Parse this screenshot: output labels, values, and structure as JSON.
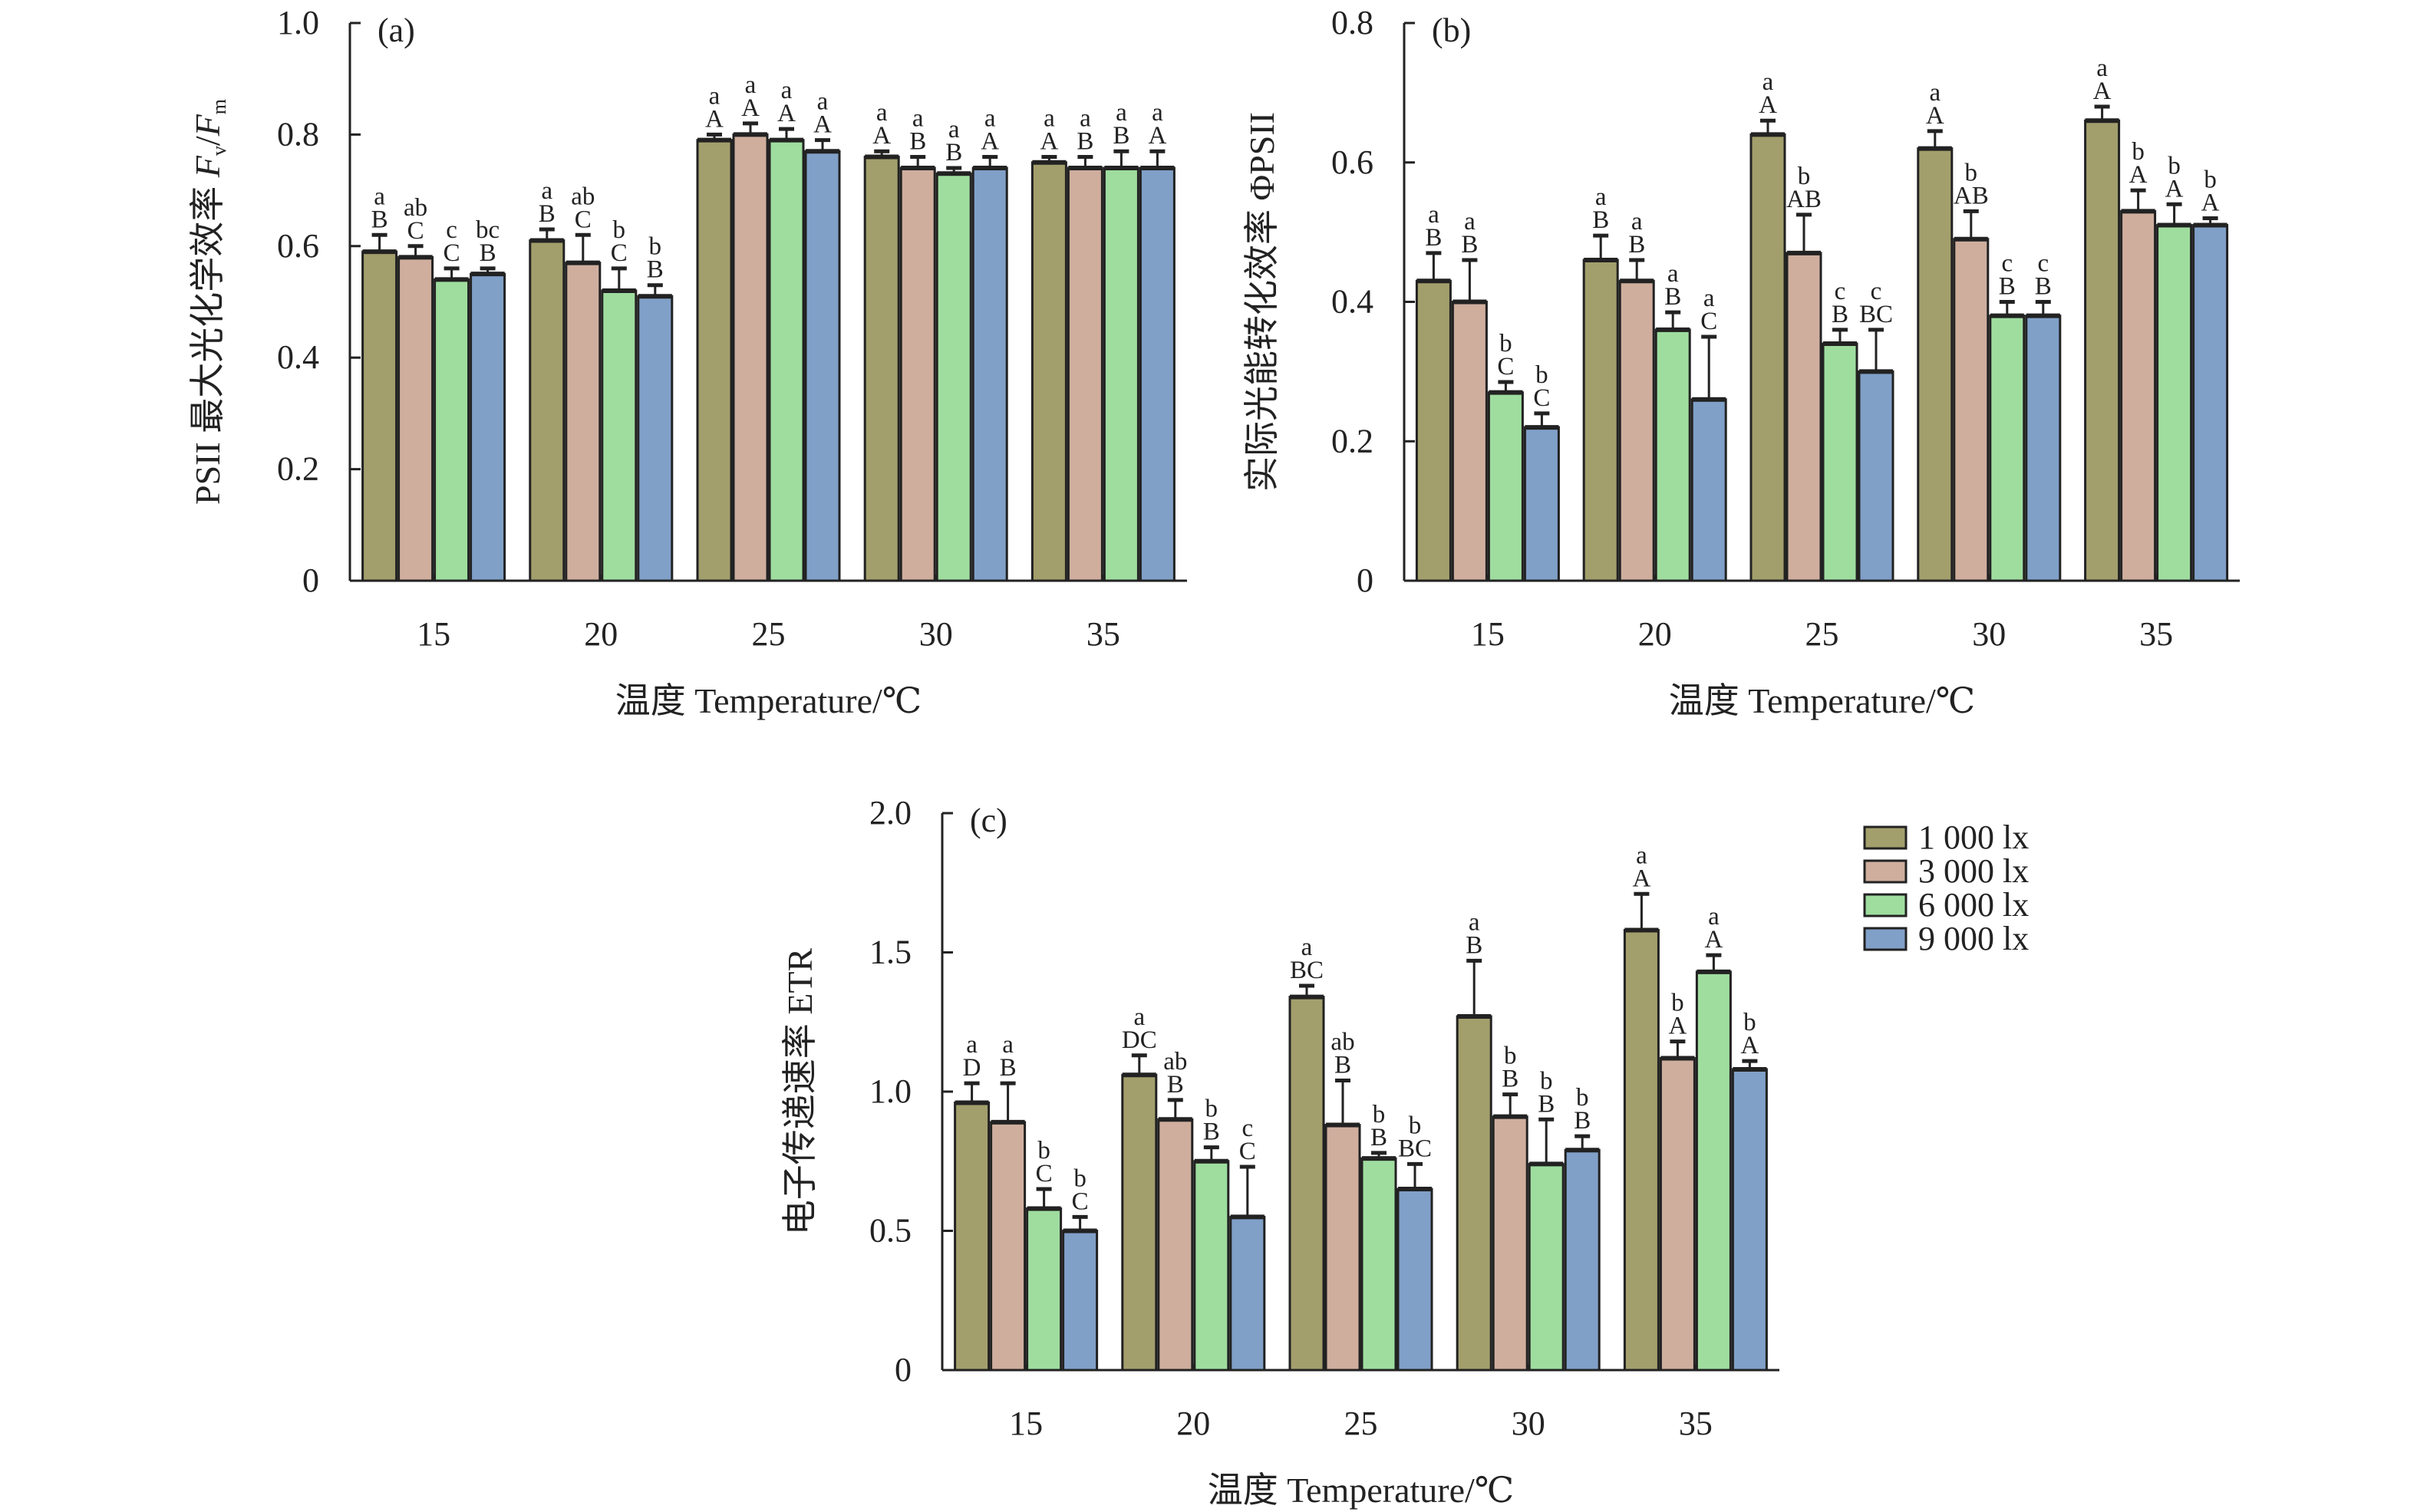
{
  "chart_data": [
    {
      "type": "bar",
      "panel_label": "(a)",
      "xlabel": "温度 Temperature/℃",
      "ylabel": {
        "prefix": "PSII 最大光化学效率 ",
        "var1": "F",
        "sub1": "v",
        "slash": "/",
        "var2": "F",
        "sub2": "m"
      },
      "ylim": [
        0,
        1.0
      ],
      "yticks": [
        0,
        0.2,
        0.4,
        0.6,
        0.8,
        1.0
      ],
      "ytick_labels": [
        "0",
        "0.2",
        "0.4",
        "0.6",
        "0.8",
        "1.0"
      ],
      "categories": [
        "15",
        "20",
        "25",
        "30",
        "35"
      ],
      "series": [
        {
          "name": "1 000 lx",
          "values": [
            0.59,
            0.61,
            0.79,
            0.76,
            0.75
          ],
          "errors": [
            0.03,
            0.02,
            0.01,
            0.01,
            0.01
          ],
          "letters": [
            [
              "a",
              "B"
            ],
            [
              "a",
              "B"
            ],
            [
              "a",
              "A"
            ],
            [
              "a",
              "A"
            ],
            [
              "a",
              "A"
            ]
          ]
        },
        {
          "name": "3 000 lx",
          "values": [
            0.58,
            0.57,
            0.8,
            0.74,
            0.74
          ],
          "errors": [
            0.02,
            0.05,
            0.02,
            0.02,
            0.02
          ],
          "letters": [
            [
              "ab",
              "C"
            ],
            [
              "ab",
              "C"
            ],
            [
              "a",
              "A"
            ],
            [
              "a",
              "B"
            ],
            [
              "a",
              "B"
            ]
          ]
        },
        {
          "name": "6 000 lx",
          "values": [
            0.54,
            0.52,
            0.79,
            0.73,
            0.74
          ],
          "errors": [
            0.02,
            0.04,
            0.02,
            0.01,
            0.03
          ],
          "letters": [
            [
              "c",
              "C"
            ],
            [
              "b",
              "C"
            ],
            [
              "a",
              "A"
            ],
            [
              "a",
              "B"
            ],
            [
              "a",
              "B"
            ]
          ]
        },
        {
          "name": "9 000 lx",
          "values": [
            0.55,
            0.51,
            0.77,
            0.74,
            0.74
          ],
          "errors": [
            0.01,
            0.02,
            0.02,
            0.02,
            0.03
          ],
          "letters": [
            [
              "bc",
              "B"
            ],
            [
              "b",
              "B"
            ],
            [
              "a",
              "A"
            ],
            [
              "a",
              "A"
            ],
            [
              "a",
              "A"
            ]
          ]
        }
      ]
    },
    {
      "type": "bar",
      "panel_label": "(b)",
      "xlabel": "温度 Temperature/℃",
      "ylabel": {
        "prefix": "实际光能转化效率 ΦPSII"
      },
      "ylim": [
        0,
        0.8
      ],
      "yticks": [
        0,
        0.2,
        0.4,
        0.6,
        0.8
      ],
      "ytick_labels": [
        "0",
        "0.2",
        "0.4",
        "0.6",
        "0.8"
      ],
      "categories": [
        "15",
        "20",
        "25",
        "30",
        "35"
      ],
      "series": [
        {
          "name": "1 000 lx",
          "values": [
            0.43,
            0.46,
            0.64,
            0.62,
            0.66
          ],
          "errors": [
            0.04,
            0.035,
            0.02,
            0.025,
            0.02
          ],
          "letters": [
            [
              "a",
              "B"
            ],
            [
              "a",
              "B"
            ],
            [
              "a",
              "A"
            ],
            [
              "a",
              "A"
            ],
            [
              "a",
              "A"
            ]
          ]
        },
        {
          "name": "3 000 lx",
          "values": [
            0.4,
            0.43,
            0.47,
            0.49,
            0.53
          ],
          "errors": [
            0.06,
            0.03,
            0.055,
            0.04,
            0.03
          ],
          "letters": [
            [
              "a",
              "B"
            ],
            [
              "a",
              "B"
            ],
            [
              "b",
              "AB"
            ],
            [
              "b",
              "AB"
            ],
            [
              "b",
              "A"
            ]
          ]
        },
        {
          "name": "6 000 lx",
          "values": [
            0.27,
            0.36,
            0.34,
            0.38,
            0.51
          ],
          "errors": [
            0.015,
            0.025,
            0.02,
            0.02,
            0.03
          ],
          "letters": [
            [
              "b",
              "C"
            ],
            [
              "a",
              "B"
            ],
            [
              "c",
              "B"
            ],
            [
              "c",
              "B"
            ],
            [
              "b",
              "A"
            ]
          ]
        },
        {
          "name": "9 000 lx",
          "values": [
            0.22,
            0.26,
            0.3,
            0.38,
            0.51
          ],
          "errors": [
            0.02,
            0.09,
            0.06,
            0.02,
            0.01
          ],
          "letters": [
            [
              "b",
              "C"
            ],
            [
              "a",
              "C"
            ],
            [
              "c",
              "BC"
            ],
            [
              "c",
              "B"
            ],
            [
              "b",
              "A"
            ]
          ]
        }
      ]
    },
    {
      "type": "bar",
      "panel_label": "(c)",
      "xlabel": "温度 Temperature/℃",
      "ylabel": {
        "prefix": "电子传递速率 ETR"
      },
      "ylim": [
        0,
        2.0
      ],
      "yticks": [
        0,
        0.5,
        1.0,
        1.5,
        2.0
      ],
      "ytick_labels": [
        "0",
        "0.5",
        "1.0",
        "1.5",
        "2.0"
      ],
      "categories": [
        "15",
        "20",
        "25",
        "30",
        "35"
      ],
      "legend": {
        "placement": "right",
        "entries": [
          "1 000 lx",
          "3 000 lx",
          "6 000 lx",
          "9 000 lx"
        ]
      },
      "series": [
        {
          "name": "1 000 lx",
          "values": [
            0.96,
            1.06,
            1.34,
            1.27,
            1.58
          ],
          "errors": [
            0.07,
            0.07,
            0.04,
            0.2,
            0.13
          ],
          "letters": [
            [
              "a",
              "D"
            ],
            [
              "a",
              "DC"
            ],
            [
              "a",
              "BC"
            ],
            [
              "a",
              "B"
            ],
            [
              "a",
              "A"
            ]
          ]
        },
        {
          "name": "3 000 lx",
          "values": [
            0.89,
            0.9,
            0.88,
            0.91,
            1.12
          ],
          "errors": [
            0.14,
            0.07,
            0.16,
            0.08,
            0.06
          ],
          "letters": [
            [
              "a",
              "B"
            ],
            [
              "ab",
              "B"
            ],
            [
              "ab",
              "B"
            ],
            [
              "b",
              "B"
            ],
            [
              "b",
              "A"
            ]
          ]
        },
        {
          "name": "6 000 lx",
          "values": [
            0.58,
            0.75,
            0.76,
            0.74,
            1.43
          ],
          "errors": [
            0.07,
            0.05,
            0.02,
            0.16,
            0.06
          ],
          "letters": [
            [
              "b",
              "C"
            ],
            [
              "b",
              "B"
            ],
            [
              "b",
              "B"
            ],
            [
              "b",
              "B"
            ],
            [
              "a",
              "A"
            ]
          ]
        },
        {
          "name": "9 000 lx",
          "values": [
            0.5,
            0.55,
            0.65,
            0.79,
            1.08
          ],
          "errors": [
            0.05,
            0.18,
            0.09,
            0.05,
            0.03
          ],
          "letters": [
            [
              "b",
              "C"
            ],
            [
              "c",
              "C"
            ],
            [
              "b",
              "BC"
            ],
            [
              "b",
              "B"
            ],
            [
              "b",
              "A"
            ]
          ]
        }
      ]
    }
  ],
  "colors": {
    "1 000 lx": "#a39f6c",
    "3 000 lx": "#cfae9e",
    "6 000 lx": "#9fdd9f",
    "9 000 lx": "#80a0c8",
    "outline": "#222222"
  }
}
